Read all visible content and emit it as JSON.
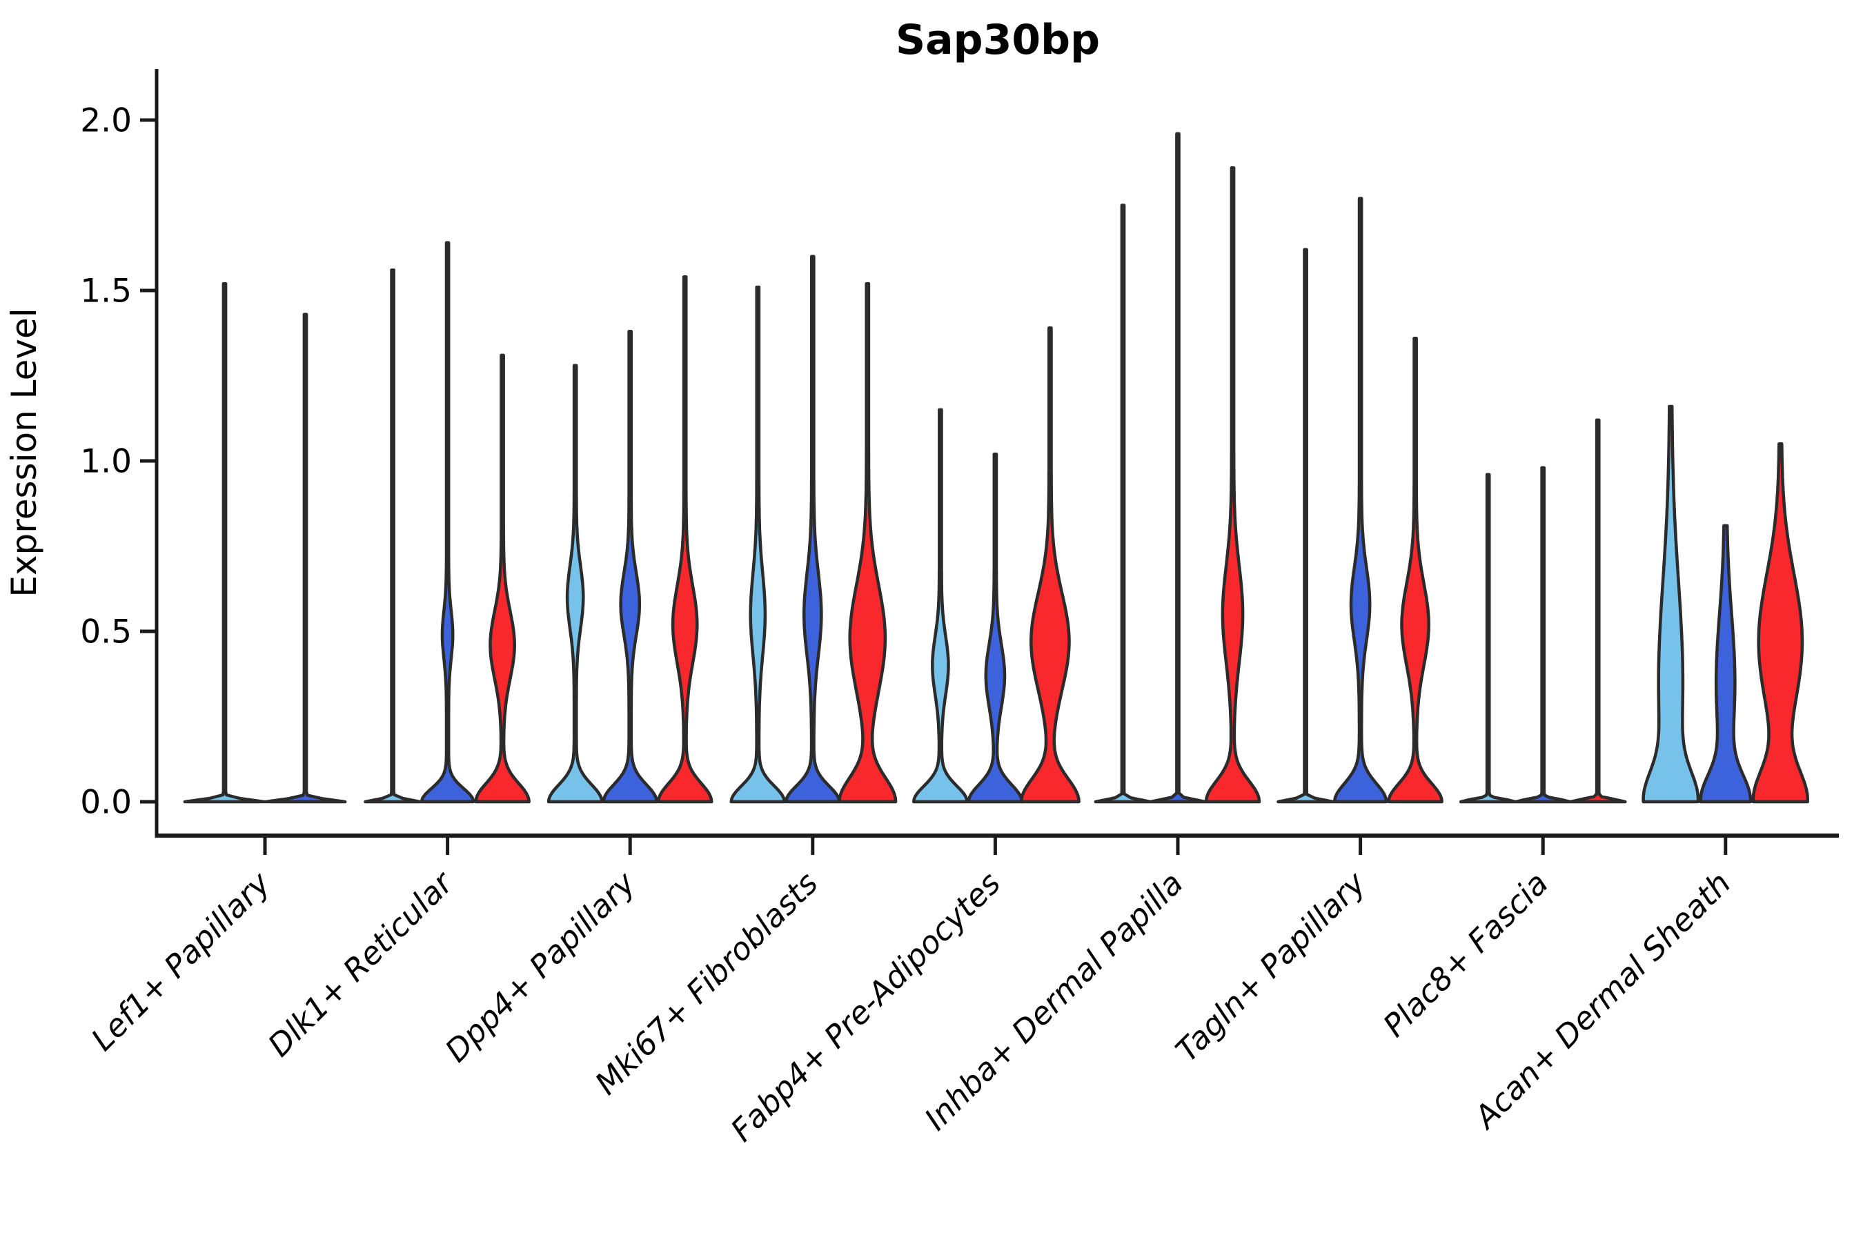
{
  "title": "Sap30bp",
  "axes": {
    "ylabel": "Expression Level",
    "ytick_labels": [
      "0.0",
      "0.5",
      "1.0",
      "1.5",
      "2.0"
    ]
  },
  "colors": {
    "light_blue": "#77C2EB",
    "dark_blue": "#3D63DC",
    "red": "#F8282C",
    "outline": "#2b2b2b",
    "axis": "#1a1a1a",
    "background": "#ffffff"
  },
  "chart_data": {
    "type": "violin",
    "title": "Sap30bp",
    "xlabel": "",
    "ylabel": "Expression Level",
    "ylim": [
      -0.1,
      2.15
    ],
    "yticks": [
      0.0,
      0.5,
      1.0,
      1.5,
      2.0
    ],
    "grid": false,
    "legend": "none",
    "series": [
      {
        "name": "light-blue",
        "color": "#77C2EB"
      },
      {
        "name": "dark-blue",
        "color": "#3D63DC"
      },
      {
        "name": "red",
        "color": "#F8282C"
      }
    ],
    "categories": [
      "Lef1+ Papillary",
      "Dlk1+ Reticular",
      "Dpp4+ Papillary",
      "Mki67+ Fibroblasts",
      "Fabp4+ Pre-Adipocytes",
      "Inhba+ Dermal Papilla",
      "Tagln+ Papillary",
      "Plac8+ Fascia",
      "Acan+ Dermal Sheath"
    ],
    "groups": [
      {
        "category": "Lef1+ Papillary",
        "violins": [
          {
            "series": 0,
            "max": 1.52,
            "base_hw": 56,
            "base_s": 0.01,
            "lens_hw": 0,
            "lens_c": 0,
            "lens_s": 1
          },
          {
            "series": 1,
            "max": 1.43,
            "base_hw": 56,
            "base_s": 0.01,
            "lens_hw": 0,
            "lens_c": 0,
            "lens_s": 1
          }
        ]
      },
      {
        "category": "Dlk1+ Reticular",
        "violins": [
          {
            "series": 0,
            "max": 1.56,
            "base_hw": 38,
            "base_s": 0.01,
            "lens_hw": 0,
            "lens_c": 0,
            "lens_s": 1
          },
          {
            "series": 1,
            "max": 1.64,
            "base_hw": 36,
            "base_s": 0.055,
            "lens_hw": 6,
            "lens_c": 0.49,
            "lens_s": 0.1
          },
          {
            "series": 2,
            "max": 1.31,
            "base_hw": 37,
            "base_s": 0.075,
            "lens_hw": 16,
            "lens_c": 0.46,
            "lens_s": 0.14
          }
        ]
      },
      {
        "category": "Dpp4+ Papillary",
        "violins": [
          {
            "series": 0,
            "max": 1.28,
            "base_hw": 37,
            "base_s": 0.07,
            "lens_hw": 10,
            "lens_c": 0.6,
            "lens_s": 0.13
          },
          {
            "series": 1,
            "max": 1.38,
            "base_hw": 37,
            "base_s": 0.07,
            "lens_hw": 12,
            "lens_c": 0.58,
            "lens_s": 0.13
          },
          {
            "series": 2,
            "max": 1.54,
            "base_hw": 37,
            "base_s": 0.075,
            "lens_hw": 16,
            "lens_c": 0.52,
            "lens_s": 0.16
          }
        ]
      },
      {
        "category": "Mki67+ Fibroblasts",
        "violins": [
          {
            "series": 0,
            "max": 1.51,
            "base_hw": 37,
            "base_s": 0.065,
            "lens_hw": 9,
            "lens_c": 0.55,
            "lens_s": 0.17
          },
          {
            "series": 1,
            "max": 1.6,
            "base_hw": 37,
            "base_s": 0.065,
            "lens_hw": 11,
            "lens_c": 0.55,
            "lens_s": 0.17
          },
          {
            "series": 2,
            "max": 1.52,
            "base_hw": 39,
            "base_s": 0.1,
            "lens_hw": 24,
            "lens_c": 0.48,
            "lens_s": 0.22
          }
        ]
      },
      {
        "category": "Fabp4+ Pre-Adipocytes",
        "violins": [
          {
            "series": 0,
            "max": 1.15,
            "base_hw": 37,
            "base_s": 0.065,
            "lens_hw": 10,
            "lens_c": 0.4,
            "lens_s": 0.12
          },
          {
            "series": 1,
            "max": 1.02,
            "base_hw": 37,
            "base_s": 0.07,
            "lens_hw": 12,
            "lens_c": 0.37,
            "lens_s": 0.13
          },
          {
            "series": 2,
            "max": 1.39,
            "base_hw": 40,
            "base_s": 0.095,
            "lens_hw": 26,
            "lens_c": 0.47,
            "lens_s": 0.2
          }
        ]
      },
      {
        "category": "Inhba+ Dermal Papilla",
        "violins": [
          {
            "series": 0,
            "max": 1.75,
            "base_hw": 38,
            "base_s": 0.01,
            "lens_hw": 0,
            "lens_c": 0,
            "lens_s": 1
          },
          {
            "series": 1,
            "max": 1.96,
            "base_hw": 38,
            "base_s": 0.01,
            "lens_hw": 0,
            "lens_c": 0,
            "lens_s": 1
          },
          {
            "series": 2,
            "max": 1.86,
            "base_hw": 37,
            "base_s": 0.085,
            "lens_hw": 13,
            "lens_c": 0.55,
            "lens_s": 0.2
          }
        ]
      },
      {
        "category": "Tagln+ Papillary",
        "violins": [
          {
            "series": 0,
            "max": 1.62,
            "base_hw": 38,
            "base_s": 0.01,
            "lens_hw": 0,
            "lens_c": 0,
            "lens_s": 1
          },
          {
            "series": 1,
            "max": 1.77,
            "base_hw": 36,
            "base_s": 0.075,
            "lens_hw": 12,
            "lens_c": 0.58,
            "lens_s": 0.15
          },
          {
            "series": 2,
            "max": 1.36,
            "base_hw": 37,
            "base_s": 0.075,
            "lens_hw": 18,
            "lens_c": 0.52,
            "lens_s": 0.17
          }
        ]
      },
      {
        "category": "Plac8+ Fascia",
        "violins": [
          {
            "series": 0,
            "max": 0.96,
            "base_hw": 38,
            "base_s": 0.01,
            "lens_hw": 0,
            "lens_c": 0,
            "lens_s": 1
          },
          {
            "series": 1,
            "max": 0.98,
            "base_hw": 38,
            "base_s": 0.01,
            "lens_hw": 0,
            "lens_c": 0,
            "lens_s": 1
          },
          {
            "series": 2,
            "max": 1.12,
            "base_hw": 38,
            "base_s": 0.01,
            "lens_hw": 0,
            "lens_c": 0,
            "lens_s": 1
          }
        ]
      },
      {
        "category": "Acan+ Dermal Sheath",
        "violins": [
          {
            "series": 0,
            "max": 1.16,
            "base_hw": 30,
            "base_s": 0.12,
            "lens_hw": 16,
            "lens_c": 0.35,
            "lens_s": 0.42
          },
          {
            "series": 1,
            "max": 0.81,
            "base_hw": 32,
            "base_s": 0.11,
            "lens_hw": 12,
            "lens_c": 0.35,
            "lens_s": 0.28
          },
          {
            "series": 2,
            "max": 1.05,
            "base_hw": 36,
            "base_s": 0.13,
            "lens_hw": 30,
            "lens_c": 0.47,
            "lens_s": 0.28
          }
        ]
      }
    ]
  }
}
